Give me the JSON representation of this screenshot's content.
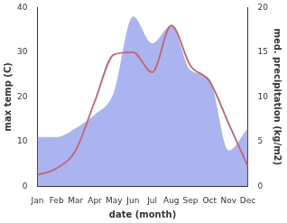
{
  "chart_data": {
    "type": "line",
    "x_label": "date (month)",
    "y_label": "max temp (C)",
    "y2_label": "med. precipitation (kg/m2)",
    "categories": [
      "Jan",
      "Feb",
      "Mar",
      "Apr",
      "May",
      "Jun",
      "Jul",
      "Aug",
      "Sep",
      "Oct",
      "Nov",
      "Dec"
    ],
    "series": [
      {
        "name": "med. precipitation",
        "type": "area",
        "axis": "y2",
        "color": "#aab4f0",
        "values": [
          5.5,
          5.5,
          6.5,
          8,
          10.5,
          19,
          16,
          18,
          13,
          12,
          4,
          6.5
        ]
      },
      {
        "name": "max temp",
        "type": "line",
        "color": "#c9606a",
        "values": [
          2.5,
          4,
          8,
          19,
          29.5,
          30,
          25.5,
          36,
          27,
          23.5,
          14,
          4.5
        ]
      }
    ],
    "ylim": [
      0,
      40
    ],
    "yticks": [
      0,
      10,
      20,
      30,
      40
    ],
    "y2lim": [
      0,
      20
    ],
    "y2ticks": [
      0,
      5,
      10,
      15,
      20
    ],
    "grid": false
  }
}
